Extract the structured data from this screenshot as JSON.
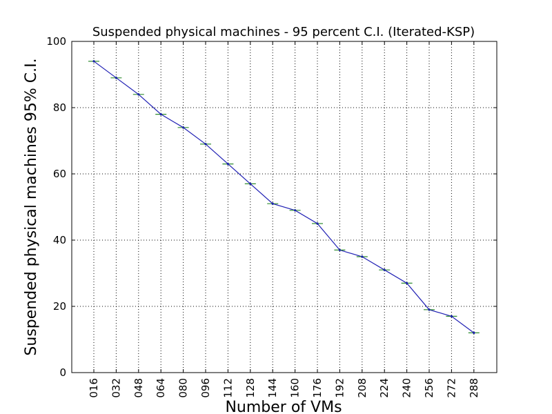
{
  "chart_data": {
    "type": "line",
    "title": "Suspended physical machines - 95 percent C.I. (Iterated-KSP)",
    "xlabel": "Number of VMs",
    "ylabel": "Suspended physical machines 95% C.I.",
    "categories": [
      "016",
      "032",
      "048",
      "064",
      "080",
      "096",
      "112",
      "128",
      "144",
      "160",
      "176",
      "192",
      "208",
      "224",
      "240",
      "256",
      "272",
      "288"
    ],
    "series": [
      {
        "values": [
          94,
          89,
          84,
          78,
          74,
          69,
          63,
          57,
          51,
          49,
          45,
          37,
          35,
          31,
          27,
          19,
          17,
          12
        ]
      }
    ],
    "ylim": [
      0,
      100
    ],
    "yticks": [
      0,
      20,
      40,
      60,
      80,
      100
    ],
    "grid": true,
    "colors": {
      "line": "#1f1fb4",
      "errorbar": "#2e8b2e"
    }
  }
}
